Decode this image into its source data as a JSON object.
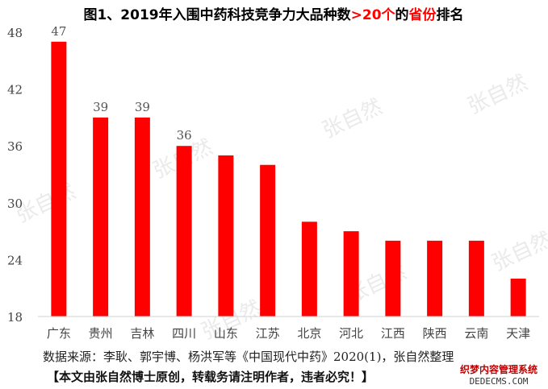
{
  "chart_data": {
    "type": "bar",
    "title_parts": [
      {
        "text": "图1、2019年入围中药科技竞争力大品种数",
        "color": "#000000"
      },
      {
        "text": ">20个",
        "color": "#ff0000"
      },
      {
        "text": "的",
        "color": "#000000"
      },
      {
        "text": "省份",
        "color": "#ff0000"
      },
      {
        "text": "排名",
        "color": "#000000"
      }
    ],
    "categories": [
      "广东",
      "贵州",
      "吉林",
      "四川",
      "山东",
      "江苏",
      "北京",
      "河北",
      "江西",
      "陕西",
      "云南",
      "天津"
    ],
    "values": [
      47,
      39,
      39,
      36,
      35,
      34,
      28,
      27,
      26,
      26,
      26,
      22
    ],
    "data_labels": [
      "47",
      "39",
      "39",
      "36",
      "",
      "",
      "",
      "",
      "",
      "",
      "",
      ""
    ],
    "ylim": [
      18,
      48
    ],
    "yticks": [
      18,
      24,
      30,
      36,
      42,
      48
    ],
    "bar_color": "#ff0000",
    "grid": false,
    "xlabel": "",
    "ylabel": ""
  },
  "watermark": {
    "text": "张自然"
  },
  "footer": {
    "source": "数据来源：李耿、郭宇博、杨洪军等《中国现代中药》2020(1)，张自然整理",
    "notice": "【本文由张自然博士原创，转载务请注明作者，违者必究！】"
  },
  "stamp": {
    "line1": "织梦内容管理系统",
    "line2": "DEDECMS.COM"
  }
}
